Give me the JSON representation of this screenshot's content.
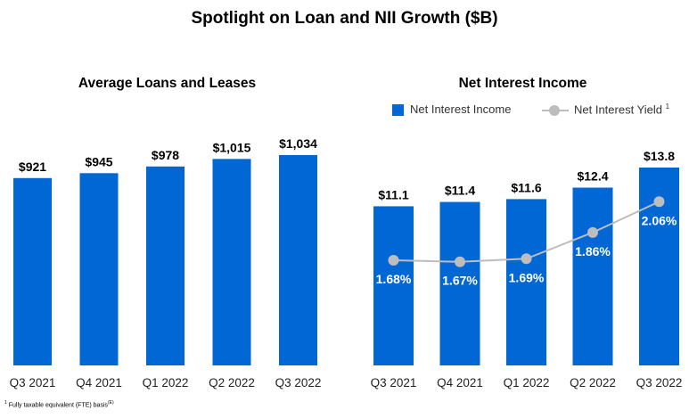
{
  "title": "Spotlight on Loan and NII Growth ($B)",
  "footnote": {
    "marker": "1",
    "text": "Fully taxable equivalent (FTE) basis",
    "ref": "(E)"
  },
  "colors": {
    "bar": "#0067d4",
    "line": "#bdbdbd",
    "text": "#000000",
    "label_on_bar": "#ffffff"
  },
  "chart_data": [
    {
      "type": "bar",
      "title": "Average Loans and Leases",
      "categories": [
        "Q3 2021",
        "Q4 2021",
        "Q1 2022",
        "Q2 2022",
        "Q3 2022"
      ],
      "values": [
        921,
        945,
        978,
        1015,
        1034
      ],
      "value_labels": [
        "$921",
        "$945",
        "$978",
        "$1,015",
        "$1,034"
      ],
      "ylim": [
        0,
        1100
      ],
      "grid": false
    },
    {
      "type": "bar",
      "title": "Net Interest Income",
      "categories": [
        "Q3 2021",
        "Q4 2021",
        "Q1 2022",
        "Q2 2022",
        "Q3 2022"
      ],
      "series": [
        {
          "name": "Net Interest Income",
          "type": "bar",
          "values": [
            11.1,
            11.4,
            11.6,
            12.4,
            13.8
          ],
          "value_labels": [
            "$11.1",
            "$11.4",
            "$11.6",
            "$12.4",
            "$13.8"
          ]
        },
        {
          "name": "Net Interest Yield",
          "superscript": "1",
          "type": "line",
          "values": [
            1.68,
            1.67,
            1.69,
            1.86,
            2.06
          ],
          "value_labels": [
            "1.68%",
            "1.67%",
            "1.69%",
            "1.86%",
            "2.06%"
          ]
        }
      ],
      "legend": "top",
      "grid": false
    }
  ]
}
